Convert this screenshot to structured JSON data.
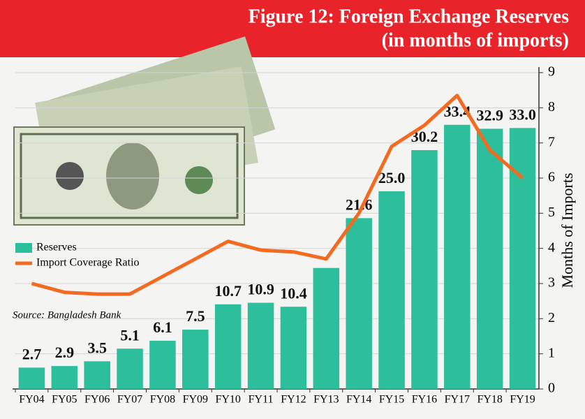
{
  "chart_data": {
    "type": "bar_line",
    "title": "Figure 12: Foreign Exchange Reserves",
    "subtitle": "(in months of imports)",
    "source": "Source: Bangladesh Bank",
    "categories": [
      "FY04",
      "FY05",
      "FY06",
      "FY07",
      "FY08",
      "FY09",
      "FY10",
      "FY11",
      "FY12",
      "FY13",
      "FY14",
      "FY15",
      "FY16",
      "FY17",
      "FY18",
      "FY19"
    ],
    "series": [
      {
        "name": "Reserves",
        "color": "#2dbf9b",
        "type": "bar",
        "values": [
          2.7,
          2.9,
          3.5,
          5.1,
          6.1,
          7.5,
          10.7,
          10.9,
          10.4,
          15.3,
          21.6,
          25.0,
          30.2,
          33.4,
          32.9,
          33.0
        ],
        "value_labels": [
          "2.7",
          "2.9",
          "3.5",
          "5.1",
          "6.1",
          "7.5",
          "10.7",
          "10.9",
          "10.4",
          null,
          "21.6",
          "25.0",
          "30.2",
          "33.4",
          "32.9",
          "33.0"
        ]
      },
      {
        "name": "Import Coverage Ratio",
        "color": "#f26b21",
        "type": "line",
        "axis": "y2",
        "values": [
          3.0,
          2.75,
          2.7,
          2.7,
          3.2,
          3.7,
          4.2,
          3.95,
          3.9,
          3.7,
          5.0,
          6.9,
          7.5,
          8.35,
          6.8,
          6.0
        ]
      }
    ],
    "ylim": [
      0,
      40
    ],
    "y2lim": [
      0,
      9
    ],
    "y2ticks": [
      0,
      1,
      2,
      3,
      4,
      5,
      6,
      7,
      8,
      9
    ],
    "y2label": "Months of Imports",
    "grid": true
  }
}
